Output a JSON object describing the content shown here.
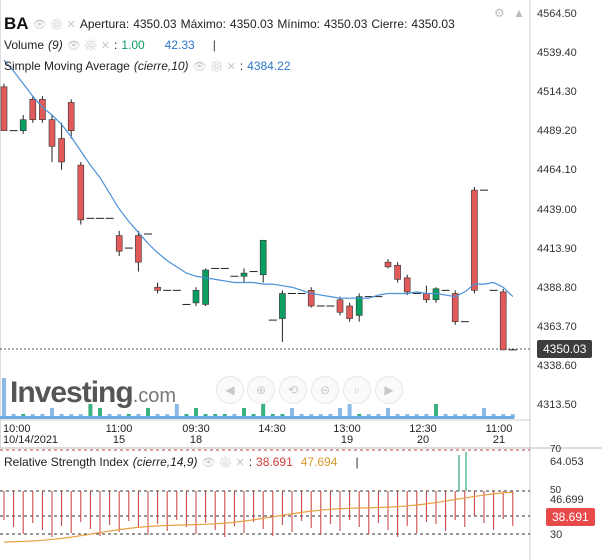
{
  "header": {
    "symbol": "BA",
    "apertura_label": "Apertura:",
    "apertura": "4350.03",
    "maximo_label": "Máximo:",
    "maximo": "4350.03",
    "minimo_label": "Mínimo:",
    "minimo": "4350.03",
    "cierre_label": "Cierre:",
    "cierre": "4350.03"
  },
  "volume": {
    "label": "Volume",
    "param": "(9)",
    "value1": "1.00",
    "value2": "42.33"
  },
  "sma": {
    "label": "Simple Moving Average",
    "param": "(cierre,10)",
    "value": "4384.22"
  },
  "rsi": {
    "label": "Relative Strength Index",
    "param": "(cierre,14,9)",
    "value1": "38.691",
    "value2": "47.694",
    "tag": "38.691"
  },
  "price_tag": "4350.03",
  "y_axis": [
    "4564.50",
    "4539.40",
    "4514.30",
    "4489.20",
    "4464.10",
    "4439.00",
    "4413.90",
    "4388.80",
    "4363.70",
    "4338.60",
    "4313.50"
  ],
  "x_axis": [
    {
      "time": "10:00",
      "date": "10/14/2021"
    },
    {
      "time": "11:00",
      "date": "15"
    },
    {
      "time": "09:30",
      "date": "18"
    },
    {
      "time": "14:30",
      "date": ""
    },
    {
      "time": "13:00",
      "date": "19"
    },
    {
      "time": "12:30",
      "date": "20"
    },
    {
      "time": "11:00",
      "date": "21"
    }
  ],
  "rsi_axis": [
    "70",
    "64.053",
    "50",
    "46.699",
    "30"
  ],
  "logo": {
    "name": "Investing",
    "suffix": ".com"
  },
  "colors": {
    "up": "#0a9e60",
    "down": "#e05a5a",
    "sma": "#4a90d9",
    "rsi": "#c23c3c",
    "rsi_signal": "#e8a040"
  },
  "chart_data": {
    "type": "candlestick",
    "ylim": [
      4300,
      4575
    ],
    "sma_last": 4384.22,
    "candles": [
      {
        "o": 4518,
        "h": 4520,
        "l": 4490,
        "c": 4490
      },
      {
        "o": 4490,
        "h": 4492,
        "l": 4489,
        "c": 4490
      },
      {
        "o": 4490,
        "h": 4500,
        "l": 4488,
        "c": 4497
      },
      {
        "o": 4510,
        "h": 4512,
        "l": 4495,
        "c": 4497
      },
      {
        "o": 4510,
        "h": 4512,
        "l": 4495,
        "c": 4497
      },
      {
        "o": 4497,
        "h": 4500,
        "l": 4470,
        "c": 4480
      },
      {
        "o": 4485,
        "h": 4495,
        "l": 4465,
        "c": 4470
      },
      {
        "o": 4508,
        "h": 4510,
        "l": 4485,
        "c": 4490
      },
      {
        "o": 4468,
        "h": 4470,
        "l": 4430,
        "c": 4433
      },
      {
        "o": 4433,
        "h": 4436,
        "l": 4432,
        "c": 4434
      },
      {
        "o": 4433,
        "h": 4436,
        "l": 4432,
        "c": 4434
      },
      {
        "o": 4435,
        "h": 4437,
        "l": 4434,
        "c": 4434
      },
      {
        "o": 4423,
        "h": 4426,
        "l": 4410,
        "c": 4413
      },
      {
        "o": 4414,
        "h": 4418,
        "l": 4412,
        "c": 4415
      },
      {
        "o": 4423,
        "h": 4426,
        "l": 4400,
        "c": 4406
      },
      {
        "o": 4423,
        "h": 4425,
        "l": 4422,
        "c": 4424
      },
      {
        "o": 4390,
        "h": 4393,
        "l": 4386,
        "c": 4388
      },
      {
        "o": 4388,
        "h": 4390,
        "l": 4386,
        "c": 4388
      },
      {
        "o": 4388,
        "h": 4390,
        "l": 4386,
        "c": 4388
      },
      {
        "o": 4378,
        "h": 4380,
        "l": 4376,
        "c": 4379
      },
      {
        "o": 4380,
        "h": 4390,
        "l": 4378,
        "c": 4388
      },
      {
        "o": 4379,
        "h": 4402,
        "l": 4378,
        "c": 4401
      },
      {
        "o": 4401,
        "h": 4404,
        "l": 4400,
        "c": 4402
      },
      {
        "o": 4401,
        "h": 4404,
        "l": 4400,
        "c": 4402
      },
      {
        "o": 4398,
        "h": 4400,
        "l": 4396,
        "c": 4397
      },
      {
        "o": 4397,
        "h": 4402,
        "l": 4393,
        "c": 4399
      },
      {
        "o": 4399,
        "h": 4403,
        "l": 4397,
        "c": 4400
      },
      {
        "o": 4398,
        "h": 4420,
        "l": 4393,
        "c": 4420
      },
      {
        "o": 4368,
        "h": 4370,
        "l": 4366,
        "c": 4369
      },
      {
        "o": 4370,
        "h": 4388,
        "l": 4355,
        "c": 4386
      },
      {
        "o": 4386,
        "h": 4388,
        "l": 4384,
        "c": 4386
      },
      {
        "o": 4386,
        "h": 4388,
        "l": 4384,
        "c": 4386
      },
      {
        "o": 4388,
        "h": 4390,
        "l": 4377,
        "c": 4378
      },
      {
        "o": 4378,
        "h": 4380,
        "l": 4376,
        "c": 4378
      },
      {
        "o": 4378,
        "h": 4380,
        "l": 4376,
        "c": 4378
      },
      {
        "o": 4382,
        "h": 4384,
        "l": 4372,
        "c": 4374
      },
      {
        "o": 4378,
        "h": 4380,
        "l": 4368,
        "c": 4370
      },
      {
        "o": 4372,
        "h": 4386,
        "l": 4368,
        "c": 4384
      },
      {
        "o": 4384,
        "h": 4386,
        "l": 4382,
        "c": 4384
      },
      {
        "o": 4384,
        "h": 4386,
        "l": 4382,
        "c": 4384
      },
      {
        "o": 4406,
        "h": 4408,
        "l": 4402,
        "c": 4403
      },
      {
        "o": 4404,
        "h": 4406,
        "l": 4393,
        "c": 4395
      },
      {
        "o": 4396,
        "h": 4398,
        "l": 4385,
        "c": 4387
      },
      {
        "o": 4387,
        "h": 4389,
        "l": 4385,
        "c": 4386
      },
      {
        "o": 4386,
        "h": 4391,
        "l": 4380,
        "c": 4382
      },
      {
        "o": 4382,
        "h": 4390,
        "l": 4380,
        "c": 4389
      },
      {
        "o": 4389,
        "h": 4391,
        "l": 4387,
        "c": 4388
      },
      {
        "o": 4386,
        "h": 4388,
        "l": 4366,
        "c": 4368
      },
      {
        "o": 4368,
        "h": 4370,
        "l": 4366,
        "c": 4368
      },
      {
        "o": 4452,
        "h": 4454,
        "l": 4386,
        "c": 4388
      },
      {
        "o": 4452,
        "h": 4454,
        "l": 4450,
        "c": 4452
      },
      {
        "o": 4388,
        "h": 4390,
        "l": 4386,
        "c": 4388
      },
      {
        "o": 4387,
        "h": 4389,
        "l": 4350,
        "c": 4350
      },
      {
        "o": 4350,
        "h": 4351,
        "l": 4349,
        "c": 4350
      }
    ],
    "sma": [
      4535,
      4528,
      4520,
      4512,
      4505,
      4500,
      4494,
      4486,
      4477,
      4468,
      4460,
      4450,
      4440,
      4432,
      4425,
      4418,
      4412,
      4407,
      4403,
      4399,
      4397,
      4396,
      4395,
      4394,
      4393,
      4393,
      4393,
      4392,
      4392,
      4391,
      4390,
      4388,
      4386,
      4385,
      4384,
      4383,
      4383,
      4383,
      4383,
      4385,
      4386,
      4386,
      4386,
      4387,
      4386,
      4386,
      4385,
      4384,
      4387,
      4392,
      4392,
      4393,
      4390,
      4384
    ]
  }
}
